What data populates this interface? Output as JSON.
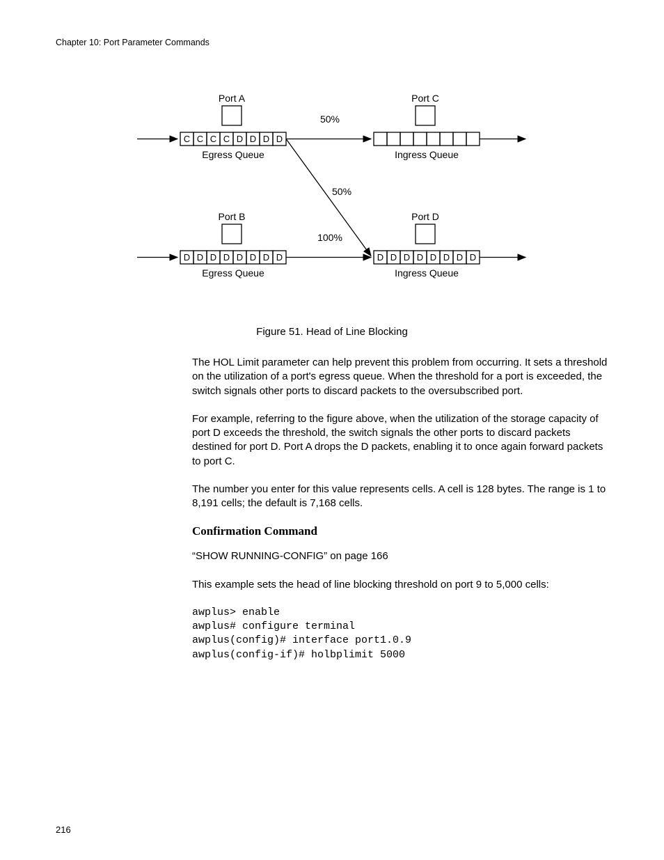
{
  "header": "Chapter 10: Port Parameter Commands",
  "diagram": {
    "portA": {
      "label": "Port A",
      "queueLabel": "Egress Queue",
      "cells": [
        "C",
        "C",
        "C",
        "C",
        "D",
        "D",
        "D",
        "D"
      ]
    },
    "portB": {
      "label": "Port B",
      "queueLabel": "Egress Queue",
      "cells": [
        "D",
        "D",
        "D",
        "D",
        "D",
        "D",
        "D",
        "D"
      ]
    },
    "portC": {
      "label": "Port C",
      "queueLabel": "Ingress Queue",
      "cells": [
        "",
        "",
        "",
        "",
        "",
        "",
        "",
        ""
      ]
    },
    "portD": {
      "label": "Port D",
      "queueLabel": "Ingress Queue",
      "cells": [
        "D",
        "D",
        "D",
        "D",
        "D",
        "D",
        "D",
        "D"
      ]
    },
    "topPercent": "50%",
    "midPercent": "50%",
    "bottomPercent": "100%",
    "strokeColor": "#000000",
    "textColor": "#000000",
    "labelFontSize": 14,
    "percentFontSize": 14
  },
  "caption": "Figure 51. Head of Line Blocking",
  "para1": "The HOL Limit parameter can help prevent this problem from occurring. It sets a threshold on the utilization of a port's egress queue. When the threshold for a port is exceeded, the switch signals other ports to discard packets to the oversubscribed port.",
  "para2": "For example, referring to the figure above, when the utilization of the storage capacity of port D exceeds the threshold, the switch signals the other ports to discard packets destined for port D. Port A drops the D packets, enabling it to once again forward packets to port C.",
  "para3": "The number you enter for this value represents cells. A cell is 128 bytes. The range is 1 to 8,191 cells; the default is 7,168 cells.",
  "subhead": "Confirmation Command",
  "para4": "“SHOW RUNNING-CONFIG” on page 166",
  "para5": "This example sets the head of line blocking threshold on port 9 to 5,000 cells:",
  "code1": "awplus> enable",
  "code2": "awplus# configure terminal",
  "code3": "awplus(config)# interface port1.0.9",
  "code4": "awplus(config-if)# holbplimit 5000",
  "pageNumber": "216"
}
